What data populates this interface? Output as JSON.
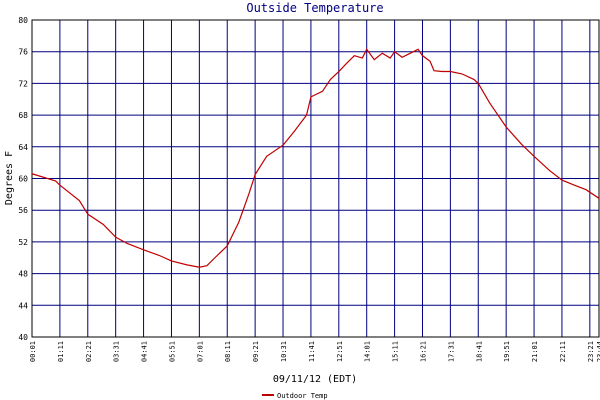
{
  "chart_data": {
    "type": "line",
    "title": "Outside Temperature",
    "x_label": "09/11/12 (EDT)",
    "y_label": "Degrees F",
    "x": [
      1,
      60,
      70,
      120,
      141,
      180,
      211,
      240,
      281,
      320,
      351,
      390,
      421,
      440,
      460,
      491,
      520,
      545,
      561,
      590,
      631,
      660,
      690,
      701,
      730,
      750,
      771,
      790,
      810,
      830,
      841,
      860,
      880,
      900,
      911,
      930,
      950,
      970,
      981,
      1000,
      1010,
      1030,
      1051,
      1080,
      1110,
      1121,
      1150,
      1191,
      1230,
      1261,
      1300,
      1331,
      1360,
      1391,
      1424
    ],
    "series": [
      {
        "name": "Outdoor Temp",
        "color": "#c00000",
        "values": [
          60.6,
          59.7,
          59.2,
          57.2,
          55.5,
          54.2,
          52.6,
          51.8,
          51.0,
          50.3,
          49.6,
          49.1,
          48.8,
          49.0,
          50.0,
          51.5,
          54.5,
          58.0,
          60.5,
          62.8,
          64.2,
          66.0,
          68.0,
          70.3,
          71.0,
          72.5,
          73.5,
          74.5,
          75.5,
          75.2,
          76.3,
          75.0,
          75.8,
          75.2,
          76.0,
          75.3,
          75.8,
          76.3,
          75.5,
          74.8,
          73.6,
          73.5,
          73.5,
          73.2,
          72.5,
          72.0,
          69.5,
          66.5,
          64.3,
          62.8,
          61.0,
          59.8,
          59.2,
          58.6,
          57.5
        ]
      }
    ],
    "xlim": [
      1,
      1424
    ],
    "xticks": [
      {
        "value": 1,
        "label": "00:01"
      },
      {
        "value": 71,
        "label": "01:11"
      },
      {
        "value": 141,
        "label": "02:21"
      },
      {
        "value": 211,
        "label": "03:31"
      },
      {
        "value": 281,
        "label": "04:41"
      },
      {
        "value": 351,
        "label": "05:51"
      },
      {
        "value": 421,
        "label": "07:01"
      },
      {
        "value": 491,
        "label": "08:11"
      },
      {
        "value": 561,
        "label": "09:21"
      },
      {
        "value": 631,
        "label": "10:31"
      },
      {
        "value": 701,
        "label": "11:41"
      },
      {
        "value": 771,
        "label": "12:51"
      },
      {
        "value": 841,
        "label": "14:01"
      },
      {
        "value": 911,
        "label": "15:11"
      },
      {
        "value": 981,
        "label": "16:21"
      },
      {
        "value": 1051,
        "label": "17:31"
      },
      {
        "value": 1121,
        "label": "18:41"
      },
      {
        "value": 1191,
        "label": "19:51"
      },
      {
        "value": 1261,
        "label": "21:01"
      },
      {
        "value": 1331,
        "label": "22:11"
      },
      {
        "value": 1401,
        "label": "23:21"
      },
      {
        "value": 1424,
        "label": "23:44"
      }
    ],
    "ylim": [
      40,
      80
    ],
    "yticks": [
      40,
      44,
      48,
      52,
      56,
      60,
      64,
      68,
      72,
      76,
      80
    ],
    "grid": true,
    "legend": "bottom"
  }
}
